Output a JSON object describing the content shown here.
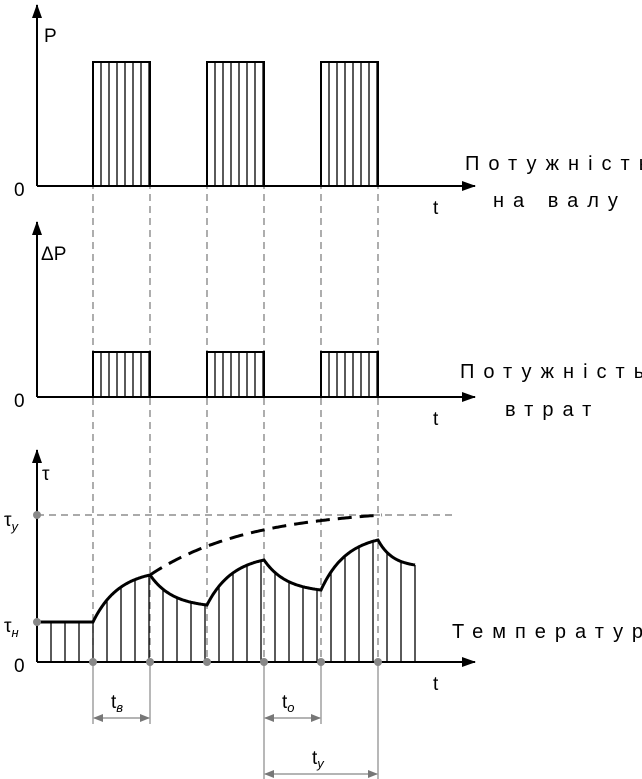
{
  "panels": [
    {
      "y_label": "P",
      "origin": "0",
      "x_label": "t",
      "caption": [
        "Потужність",
        "на валу"
      ]
    },
    {
      "y_label": "ΔP",
      "origin": "0",
      "x_label": "t",
      "caption": [
        "Потужність",
        "втрат"
      ]
    },
    {
      "y_label": "τ",
      "origin": "0",
      "x_label": "t",
      "caption": [
        "Температура"
      ],
      "levels": [
        {
          "symbol": "τ",
          "sub": "у"
        },
        {
          "symbol": "τ",
          "sub": "н"
        }
      ]
    }
  ],
  "intervals": [
    {
      "symbol": "t",
      "sub": "в"
    },
    {
      "symbol": "t",
      "sub": "о"
    },
    {
      "symbol": "t",
      "sub": "у"
    }
  ]
}
